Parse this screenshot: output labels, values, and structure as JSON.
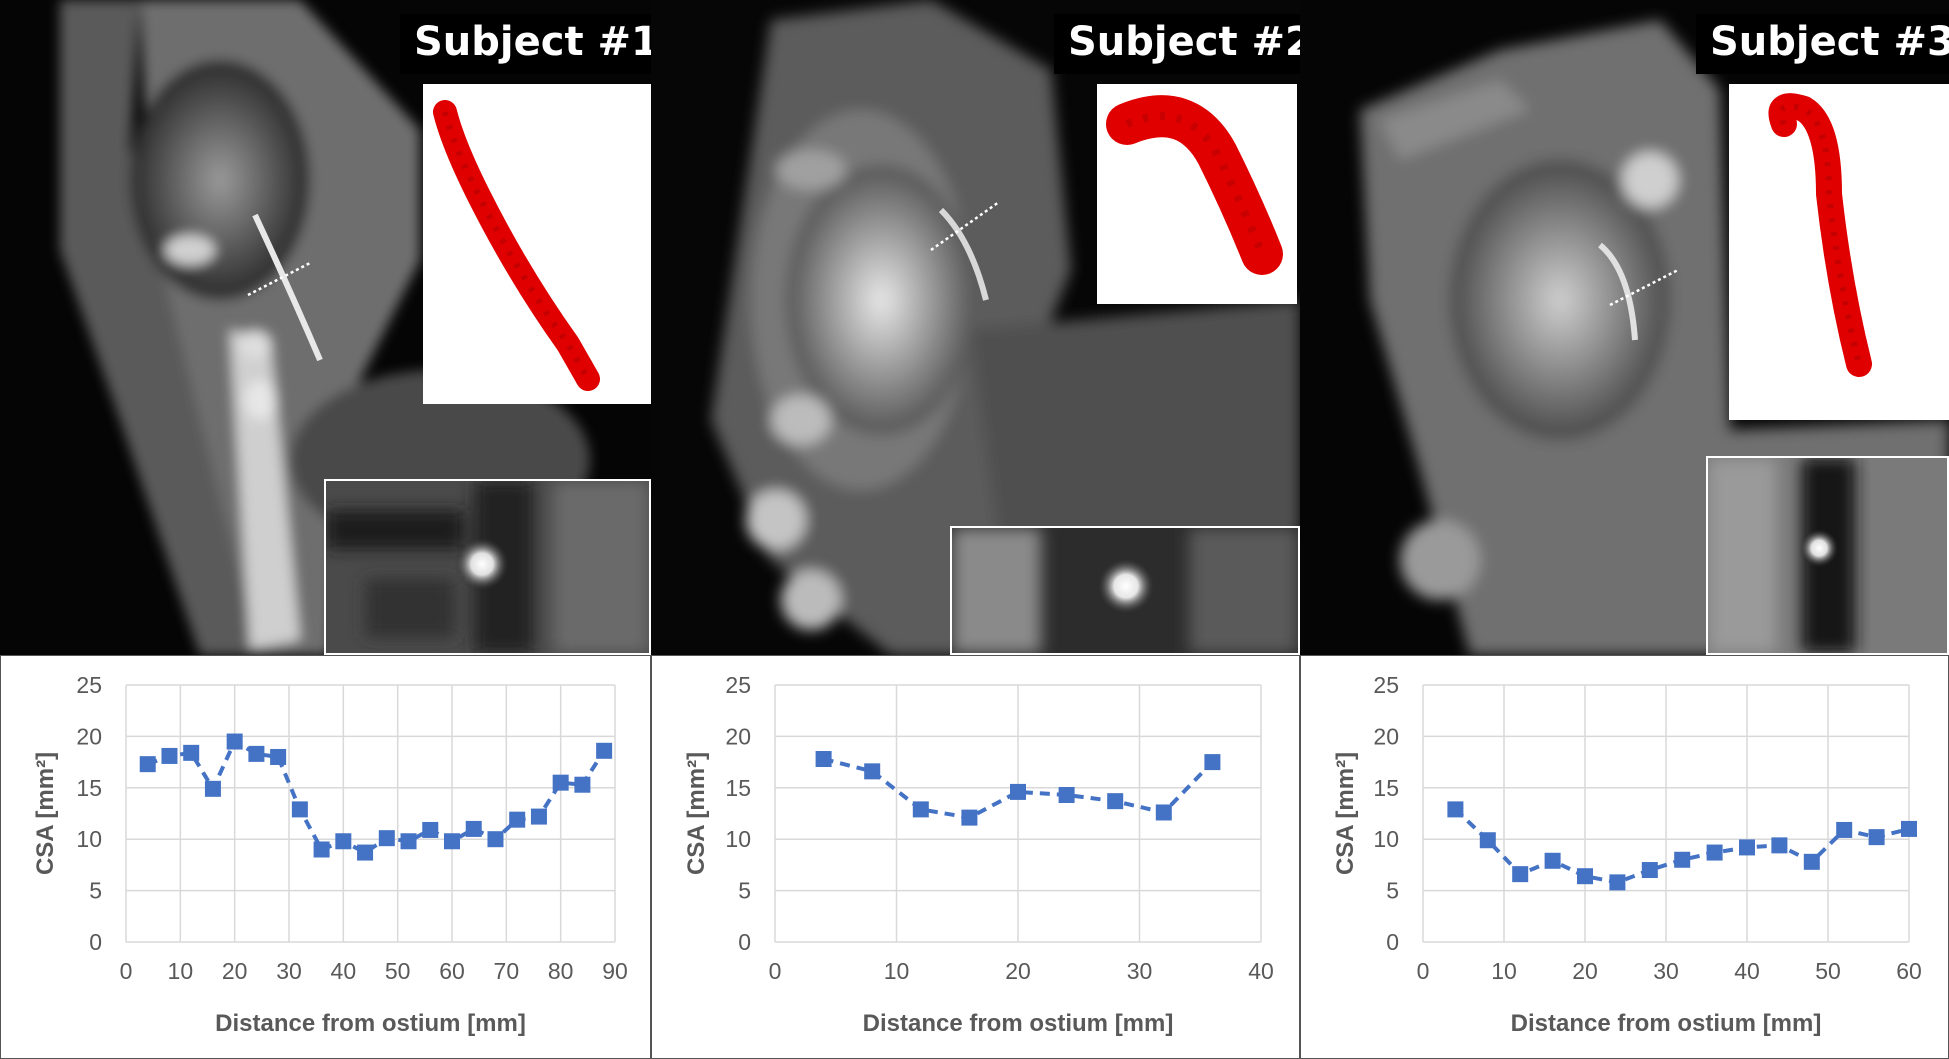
{
  "colors": {
    "vessel_red": "#e00000",
    "series_blue": "#4472c4",
    "grid": "#d9d9d9",
    "axis_text": "#595959"
  },
  "panels": [
    {
      "label": "Subject #1"
    },
    {
      "label": "Subject #2"
    },
    {
      "label": "Subject #3"
    }
  ],
  "chart_data": [
    {
      "type": "line",
      "xlabel": "Distance from ostium [mm]",
      "ylabel": "CSA [mm²]",
      "xlim": [
        0,
        90
      ],
      "ylim": [
        0,
        25
      ],
      "xticks": [
        0,
        10,
        20,
        30,
        40,
        50,
        60,
        70,
        80,
        90
      ],
      "yticks": [
        0,
        5,
        10,
        15,
        20,
        25
      ],
      "grid": true,
      "series": [
        {
          "x": [
            4,
            8,
            12,
            16,
            20,
            24,
            28,
            32,
            36,
            40,
            44,
            48,
            52,
            56,
            60,
            64,
            68,
            72,
            76,
            80,
            84,
            88
          ],
          "y": [
            17.3,
            18.1,
            18.4,
            14.9,
            19.5,
            18.3,
            18.0,
            12.9,
            9.0,
            9.8,
            8.7,
            10.1,
            9.8,
            10.9,
            9.8,
            11.0,
            10.0,
            11.9,
            12.2,
            15.5,
            15.3,
            18.6
          ],
          "style": "dashed line with square markers"
        }
      ]
    },
    {
      "type": "line",
      "xlabel": "Distance from ostium [mm]",
      "ylabel": "CSA [mm²]",
      "xlim": [
        0,
        40
      ],
      "ylim": [
        0,
        25
      ],
      "xticks": [
        0,
        10,
        20,
        30,
        40
      ],
      "yticks": [
        0,
        5,
        10,
        15,
        20,
        25
      ],
      "grid": true,
      "series": [
        {
          "x": [
            4,
            8,
            12,
            16,
            20,
            24,
            28,
            32,
            36
          ],
          "y": [
            17.8,
            16.6,
            12.9,
            12.1,
            14.6,
            14.3,
            13.7,
            12.6,
            17.5
          ],
          "style": "dashed line with square markers"
        }
      ]
    },
    {
      "type": "line",
      "xlabel": "Distance from ostium [mm]",
      "ylabel": "CSA [mm²]",
      "xlim": [
        0,
        60
      ],
      "ylim": [
        0,
        25
      ],
      "xticks": [
        0,
        10,
        20,
        30,
        40,
        50,
        60
      ],
      "yticks": [
        0,
        5,
        10,
        15,
        20,
        25
      ],
      "grid": true,
      "series": [
        {
          "x": [
            4,
            8,
            12,
            16,
            20,
            24,
            28,
            32,
            36,
            40,
            44,
            48,
            52,
            56,
            60
          ],
          "y": [
            12.9,
            9.9,
            6.6,
            7.9,
            6.4,
            5.8,
            7.0,
            8.0,
            8.7,
            9.2,
            9.4,
            7.8,
            10.9,
            10.2,
            11.0
          ],
          "style": "dashed line with square markers"
        }
      ]
    }
  ]
}
